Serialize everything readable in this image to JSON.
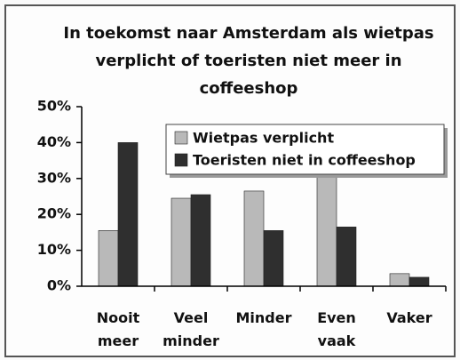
{
  "chart_data": {
    "type": "bar",
    "title": "In toekomst naar Amsterdam als wietpas verplicht of toeristen niet meer in coffeeshop",
    "categories": [
      "Nooit meer",
      "Veel minder",
      "Minder",
      "Even vaak",
      "Vaker"
    ],
    "series": [
      {
        "name": "Wietpas verplicht",
        "color": "#b9b9b9",
        "values": [
          15.5,
          24.5,
          26.5,
          31,
          3.5
        ]
      },
      {
        "name": "Toeristen niet in coffeeshop",
        "color": "#2f2f2f",
        "values": [
          40,
          25.5,
          15.5,
          16.5,
          2.5
        ]
      }
    ],
    "ylim": [
      0,
      50
    ],
    "yticks": [
      {
        "value": 0,
        "label": "0%"
      },
      {
        "value": 10,
        "label": "10%"
      },
      {
        "value": 20,
        "label": "20%"
      },
      {
        "value": 30,
        "label": "30%"
      },
      {
        "value": 40,
        "label": "40%"
      },
      {
        "value": 50,
        "label": "50%"
      }
    ],
    "legend": "upper right"
  }
}
